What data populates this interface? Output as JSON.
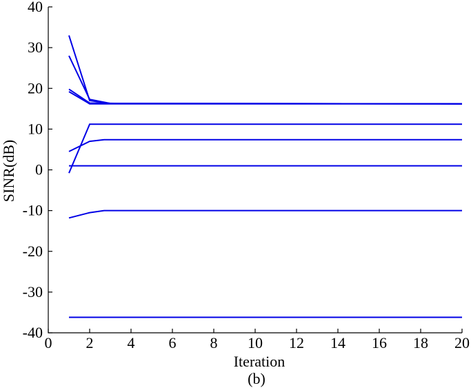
{
  "chart_data": {
    "type": "line",
    "caption": "(b)",
    "xlabel": "Iteration",
    "ylabel": "SINR(dB)",
    "xlim": [
      0,
      20
    ],
    "ylim": [
      -40,
      40
    ],
    "xticks": [
      "0",
      "2",
      "4",
      "6",
      "8",
      "10",
      "12",
      "14",
      "16",
      "18",
      "20"
    ],
    "yticks": [
      "40",
      "30",
      "20",
      "10",
      "0",
      "-10",
      "-20",
      "-30",
      "-40"
    ],
    "grid": false,
    "series_color": "#0000e6",
    "series": [
      {
        "x": [
          1,
          2,
          3,
          20
        ],
        "y": [
          33,
          17,
          16.3,
          16.2
        ]
      },
      {
        "x": [
          1,
          2,
          3,
          20
        ],
        "y": [
          28,
          17.3,
          16.3,
          16.2
        ]
      },
      {
        "x": [
          1,
          2,
          3.5,
          20
        ],
        "y": [
          19.8,
          16.4,
          16.3,
          16.2
        ]
      },
      {
        "x": [
          1,
          2,
          3,
          20
        ],
        "y": [
          19.2,
          16.2,
          16.2,
          16.2
        ]
      },
      {
        "x": [
          1,
          2,
          20
        ],
        "y": [
          -0.8,
          11.2,
          11.2
        ]
      },
      {
        "x": [
          1,
          2,
          2.7,
          20
        ],
        "y": [
          4.5,
          7,
          7.4,
          7.4
        ]
      },
      {
        "x": [
          1,
          20
        ],
        "y": [
          1,
          1
        ]
      },
      {
        "x": [
          1,
          2,
          2.7,
          20
        ],
        "y": [
          -11.8,
          -10.5,
          -10,
          -10
        ]
      },
      {
        "x": [
          1,
          20
        ],
        "y": [
          -36.2,
          -36.2
        ]
      }
    ]
  }
}
